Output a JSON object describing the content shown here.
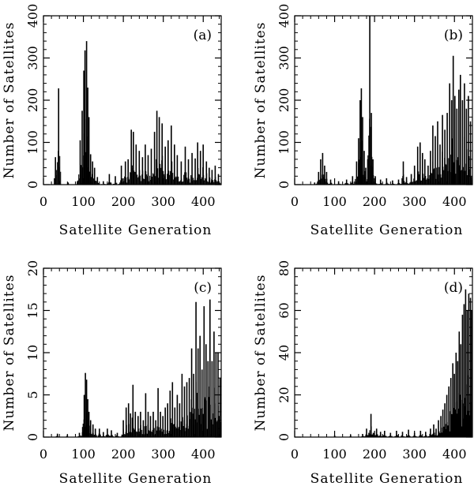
{
  "chart_data": [
    {
      "type": "bar",
      "panel_label": "(a)",
      "xlabel": "Satellite Generation",
      "ylabel": "Number of Satellites",
      "xlim": [
        0,
        445
      ],
      "ylim": [
        0,
        400
      ],
      "xticks": [
        0,
        100,
        200,
        300,
        400
      ],
      "yticks": [
        0,
        100,
        200,
        300,
        400
      ],
      "grid": false,
      "legend": "none",
      "color": "#000000",
      "peaks": [
        {
          "x": 30,
          "y": 65
        },
        {
          "x": 38,
          "y": 228
        },
        {
          "x": 62,
          "y": 5
        },
        {
          "x": 85,
          "y": 8
        },
        {
          "x": 92,
          "y": 105
        },
        {
          "x": 97,
          "y": 175
        },
        {
          "x": 101,
          "y": 270
        },
        {
          "x": 104,
          "y": 318
        },
        {
          "x": 108,
          "y": 340
        },
        {
          "x": 111,
          "y": 230
        },
        {
          "x": 114,
          "y": 160
        },
        {
          "x": 118,
          "y": 72
        },
        {
          "x": 123,
          "y": 55
        },
        {
          "x": 128,
          "y": 40
        },
        {
          "x": 135,
          "y": 18
        },
        {
          "x": 150,
          "y": 8
        },
        {
          "x": 165,
          "y": 25
        },
        {
          "x": 180,
          "y": 20
        },
        {
          "x": 195,
          "y": 45
        },
        {
          "x": 205,
          "y": 55
        },
        {
          "x": 212,
          "y": 60
        },
        {
          "x": 220,
          "y": 130
        },
        {
          "x": 225,
          "y": 125
        },
        {
          "x": 232,
          "y": 95
        },
        {
          "x": 240,
          "y": 80
        },
        {
          "x": 248,
          "y": 65
        },
        {
          "x": 255,
          "y": 95
        },
        {
          "x": 262,
          "y": 70
        },
        {
          "x": 270,
          "y": 85
        },
        {
          "x": 278,
          "y": 125
        },
        {
          "x": 284,
          "y": 175
        },
        {
          "x": 290,
          "y": 160
        },
        {
          "x": 297,
          "y": 145
        },
        {
          "x": 305,
          "y": 90
        },
        {
          "x": 312,
          "y": 105
        },
        {
          "x": 320,
          "y": 140
        },
        {
          "x": 328,
          "y": 95
        },
        {
          "x": 335,
          "y": 70
        },
        {
          "x": 345,
          "y": 55
        },
        {
          "x": 355,
          "y": 90
        },
        {
          "x": 363,
          "y": 60
        },
        {
          "x": 372,
          "y": 75
        },
        {
          "x": 380,
          "y": 62
        },
        {
          "x": 386,
          "y": 100
        },
        {
          "x": 393,
          "y": 80
        },
        {
          "x": 400,
          "y": 95
        },
        {
          "x": 408,
          "y": 55
        },
        {
          "x": 415,
          "y": 40
        },
        {
          "x": 422,
          "y": 35
        },
        {
          "x": 430,
          "y": 45
        },
        {
          "x": 438,
          "y": 25
        }
      ]
    },
    {
      "type": "bar",
      "panel_label": "(b)",
      "xlabel": "Satellite Generation",
      "ylabel": "Number of Satellites",
      "xlim": [
        0,
        445
      ],
      "ylim": [
        0,
        400
      ],
      "xticks": [
        0,
        100,
        200,
        300,
        400
      ],
      "yticks": [
        0,
        100,
        200,
        300,
        400
      ],
      "grid": false,
      "legend": "none",
      "color": "#000000",
      "peaks": [
        {
          "x": 50,
          "y": 5
        },
        {
          "x": 60,
          "y": 30
        },
        {
          "x": 65,
          "y": 60
        },
        {
          "x": 70,
          "y": 75
        },
        {
          "x": 75,
          "y": 45
        },
        {
          "x": 80,
          "y": 30
        },
        {
          "x": 90,
          "y": 12
        },
        {
          "x": 110,
          "y": 8
        },
        {
          "x": 130,
          "y": 12
        },
        {
          "x": 145,
          "y": 20
        },
        {
          "x": 155,
          "y": 55
        },
        {
          "x": 160,
          "y": 110
        },
        {
          "x": 164,
          "y": 200
        },
        {
          "x": 167,
          "y": 228
        },
        {
          "x": 170,
          "y": 160
        },
        {
          "x": 174,
          "y": 80
        },
        {
          "x": 178,
          "y": 40
        },
        {
          "x": 183,
          "y": 60
        },
        {
          "x": 188,
          "y": 400
        },
        {
          "x": 192,
          "y": 170
        },
        {
          "x": 196,
          "y": 60
        },
        {
          "x": 202,
          "y": 20
        },
        {
          "x": 215,
          "y": 12
        },
        {
          "x": 230,
          "y": 15
        },
        {
          "x": 245,
          "y": 10
        },
        {
          "x": 260,
          "y": 12
        },
        {
          "x": 272,
          "y": 55
        },
        {
          "x": 280,
          "y": 18
        },
        {
          "x": 292,
          "y": 25
        },
        {
          "x": 300,
          "y": 45
        },
        {
          "x": 308,
          "y": 90
        },
        {
          "x": 314,
          "y": 100
        },
        {
          "x": 320,
          "y": 75
        },
        {
          "x": 326,
          "y": 60
        },
        {
          "x": 334,
          "y": 45
        },
        {
          "x": 340,
          "y": 80
        },
        {
          "x": 346,
          "y": 140
        },
        {
          "x": 352,
          "y": 115
        },
        {
          "x": 358,
          "y": 150
        },
        {
          "x": 364,
          "y": 95
        },
        {
          "x": 370,
          "y": 165
        },
        {
          "x": 376,
          "y": 130
        },
        {
          "x": 382,
          "y": 170
        },
        {
          "x": 388,
          "y": 240
        },
        {
          "x": 393,
          "y": 200
        },
        {
          "x": 397,
          "y": 305
        },
        {
          "x": 401,
          "y": 210
        },
        {
          "x": 406,
          "y": 180
        },
        {
          "x": 411,
          "y": 225
        },
        {
          "x": 415,
          "y": 260
        },
        {
          "x": 420,
          "y": 200
        },
        {
          "x": 425,
          "y": 240
        },
        {
          "x": 430,
          "y": 180
        },
        {
          "x": 435,
          "y": 210
        },
        {
          "x": 440,
          "y": 150
        }
      ]
    },
    {
      "type": "bar",
      "panel_label": "(c)",
      "xlabel": "Satellite Generation",
      "ylabel": "Number of Satellites",
      "xlim": [
        0,
        445
      ],
      "ylim": [
        0,
        20
      ],
      "xticks": [
        0,
        100,
        200,
        300,
        400
      ],
      "yticks": [
        0,
        5,
        10,
        15,
        20
      ],
      "grid": false,
      "legend": "none",
      "color": "#000000",
      "peaks": [
        {
          "x": 35,
          "y": 0.4
        },
        {
          "x": 60,
          "y": 0.3
        },
        {
          "x": 90,
          "y": 0.5
        },
        {
          "x": 98,
          "y": 1.2
        },
        {
          "x": 102,
          "y": 5.0
        },
        {
          "x": 105,
          "y": 7.6
        },
        {
          "x": 108,
          "y": 6.8
        },
        {
          "x": 111,
          "y": 4.5
        },
        {
          "x": 114,
          "y": 3.0
        },
        {
          "x": 118,
          "y": 2.0
        },
        {
          "x": 124,
          "y": 1.5
        },
        {
          "x": 130,
          "y": 1.0
        },
        {
          "x": 140,
          "y": 1.0
        },
        {
          "x": 150,
          "y": 0.6
        },
        {
          "x": 160,
          "y": 1.0
        },
        {
          "x": 170,
          "y": 0.8
        },
        {
          "x": 185,
          "y": 0.5
        },
        {
          "x": 200,
          "y": 2.0
        },
        {
          "x": 207,
          "y": 3.5
        },
        {
          "x": 213,
          "y": 4.0
        },
        {
          "x": 218,
          "y": 2.8
        },
        {
          "x": 224,
          "y": 6.2
        },
        {
          "x": 230,
          "y": 3.0
        },
        {
          "x": 237,
          "y": 2.5
        },
        {
          "x": 243,
          "y": 3.0
        },
        {
          "x": 250,
          "y": 2.0
        },
        {
          "x": 256,
          "y": 5.2
        },
        {
          "x": 262,
          "y": 3.0
        },
        {
          "x": 268,
          "y": 2.5
        },
        {
          "x": 275,
          "y": 3.0
        },
        {
          "x": 281,
          "y": 2.0
        },
        {
          "x": 287,
          "y": 5.8
        },
        {
          "x": 293,
          "y": 3.0
        },
        {
          "x": 299,
          "y": 2.5
        },
        {
          "x": 305,
          "y": 3.5
        },
        {
          "x": 311,
          "y": 4.0
        },
        {
          "x": 317,
          "y": 5.5
        },
        {
          "x": 323,
          "y": 6.5
        },
        {
          "x": 329,
          "y": 3.5
        },
        {
          "x": 335,
          "y": 5.0
        },
        {
          "x": 341,
          "y": 4.0
        },
        {
          "x": 347,
          "y": 7.5
        },
        {
          "x": 353,
          "y": 6.0
        },
        {
          "x": 359,
          "y": 6.5
        },
        {
          "x": 365,
          "y": 7.0
        },
        {
          "x": 371,
          "y": 10.5
        },
        {
          "x": 376,
          "y": 7.5
        },
        {
          "x": 382,
          "y": 16.0
        },
        {
          "x": 387,
          "y": 10.5
        },
        {
          "x": 392,
          "y": 12.0
        },
        {
          "x": 397,
          "y": 8.0
        },
        {
          "x": 402,
          "y": 15.5
        },
        {
          "x": 407,
          "y": 11.0
        },
        {
          "x": 412,
          "y": 9.0
        },
        {
          "x": 417,
          "y": 16.3
        },
        {
          "x": 422,
          "y": 9.0
        },
        {
          "x": 427,
          "y": 12.5
        },
        {
          "x": 432,
          "y": 10.0
        },
        {
          "x": 437,
          "y": 10.0
        },
        {
          "x": 442,
          "y": 7.0
        }
      ]
    },
    {
      "type": "bar",
      "panel_label": "(d)",
      "xlabel": "Satellite Generation",
      "ylabel": "Number of Satellites",
      "xlim": [
        0,
        445
      ],
      "ylim": [
        0,
        80
      ],
      "xticks": [
        0,
        100,
        200,
        300,
        400
      ],
      "yticks": [
        0,
        20,
        40,
        60,
        80
      ],
      "grid": false,
      "legend": "none",
      "color": "#000000",
      "peaks": [
        {
          "x": 100,
          "y": 0.8
        },
        {
          "x": 140,
          "y": 1.0
        },
        {
          "x": 170,
          "y": 1.5
        },
        {
          "x": 180,
          "y": 4.0
        },
        {
          "x": 186,
          "y": 2.0
        },
        {
          "x": 191,
          "y": 11.0
        },
        {
          "x": 197,
          "y": 2.0
        },
        {
          "x": 205,
          "y": 4.0
        },
        {
          "x": 215,
          "y": 2.5
        },
        {
          "x": 225,
          "y": 3.0
        },
        {
          "x": 240,
          "y": 2.0
        },
        {
          "x": 255,
          "y": 3.0
        },
        {
          "x": 270,
          "y": 2.5
        },
        {
          "x": 285,
          "y": 3.5
        },
        {
          "x": 300,
          "y": 2.0
        },
        {
          "x": 315,
          "y": 3.0
        },
        {
          "x": 328,
          "y": 2.5
        },
        {
          "x": 340,
          "y": 4.0
        },
        {
          "x": 348,
          "y": 6.0
        },
        {
          "x": 354,
          "y": 4.0
        },
        {
          "x": 360,
          "y": 8.0
        },
        {
          "x": 366,
          "y": 10.0
        },
        {
          "x": 371,
          "y": 13.0
        },
        {
          "x": 376,
          "y": 16.0
        },
        {
          "x": 381,
          "y": 20.0
        },
        {
          "x": 386,
          "y": 24.0
        },
        {
          "x": 391,
          "y": 28.0
        },
        {
          "x": 396,
          "y": 35.0
        },
        {
          "x": 400,
          "y": 30.0
        },
        {
          "x": 404,
          "y": 40.0
        },
        {
          "x": 408,
          "y": 36.0
        },
        {
          "x": 412,
          "y": 50.0
        },
        {
          "x": 416,
          "y": 44.0
        },
        {
          "x": 420,
          "y": 58.0
        },
        {
          "x": 424,
          "y": 63.0
        },
        {
          "x": 428,
          "y": 70.0
        },
        {
          "x": 432,
          "y": 60.0
        },
        {
          "x": 436,
          "y": 68.0
        },
        {
          "x": 440,
          "y": 66.0
        },
        {
          "x": 443,
          "y": 60.0
        }
      ]
    }
  ]
}
